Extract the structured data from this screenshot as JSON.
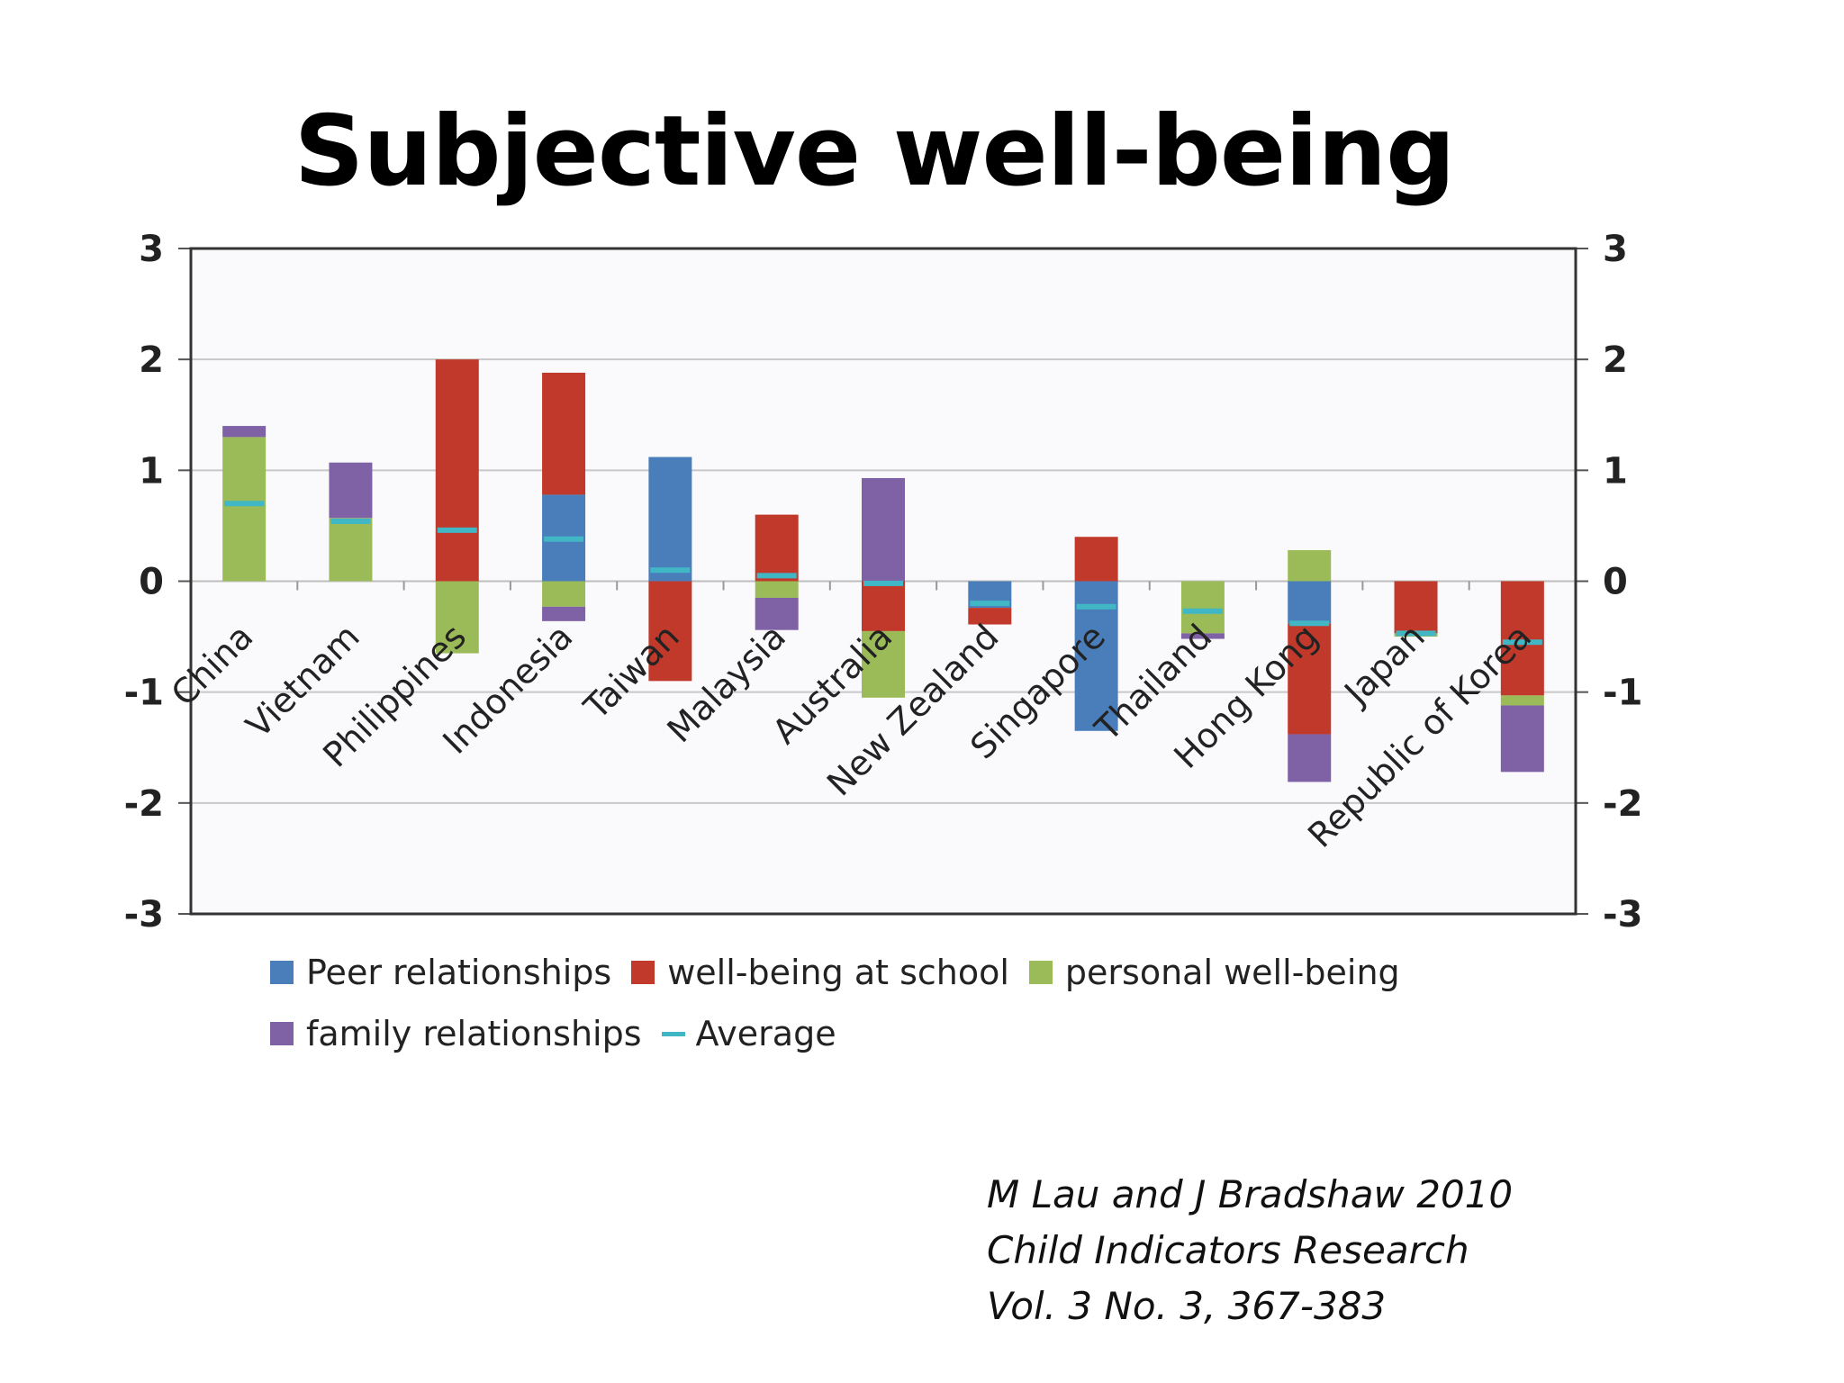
{
  "slide": {
    "title": "Subjective well-being",
    "citation": [
      "M Lau and J Bradshaw 2010",
      "Child Indicators Research",
      "Vol. 3 No. 3, 367-383"
    ]
  },
  "chart_data": {
    "type": "bar",
    "stacked": true,
    "title": "",
    "xlabel": "",
    "ylabel": "",
    "ylim": [
      -3,
      3
    ],
    "yticks": [
      3,
      2,
      1,
      0,
      -1,
      -2,
      -3
    ],
    "grid": true,
    "legend_position": "bottom",
    "categories": [
      "China",
      "Vietnam",
      "Philippines",
      "Indonesia",
      "Taiwan",
      "Malaysia",
      "Australia",
      "New Zealand",
      "Singapore",
      "Thailand",
      "Hong Kong",
      "Japan",
      "Republic of Korea"
    ],
    "series": [
      {
        "name": "Peer relationships",
        "color": "#4a7ebb",
        "values": [
          0,
          0,
          0,
          0.78,
          1.12,
          0,
          0,
          -0.24,
          -1.35,
          0,
          -0.38,
          0,
          0
        ]
      },
      {
        "name": "well-being at school",
        "color": "#c0392b",
        "values": [
          0,
          0,
          2.0,
          1.1,
          -0.9,
          0.6,
          -0.45,
          -0.15,
          0.4,
          0,
          -1.0,
          -0.47,
          -1.03
        ]
      },
      {
        "name": "personal well-being",
        "color": "#9bbb59",
        "values": [
          1.3,
          0.57,
          -0.65,
          -0.23,
          0,
          -0.15,
          -0.6,
          0,
          0,
          -0.47,
          0.28,
          -0.03,
          -0.09
        ]
      },
      {
        "name": "family relationships",
        "color": "#7f62a5",
        "values": [
          0.1,
          0.5,
          0,
          -0.13,
          0,
          -0.29,
          0.93,
          0,
          0,
          -0.05,
          -0.43,
          0,
          -0.6
        ]
      }
    ],
    "average": {
      "name": "Average",
      "color": "#41b6c4",
      "values": [
        0.7,
        0.54,
        0.46,
        0.38,
        0.1,
        0.05,
        -0.02,
        -0.2,
        -0.23,
        -0.27,
        -0.38,
        -0.47,
        -0.55
      ]
    }
  }
}
